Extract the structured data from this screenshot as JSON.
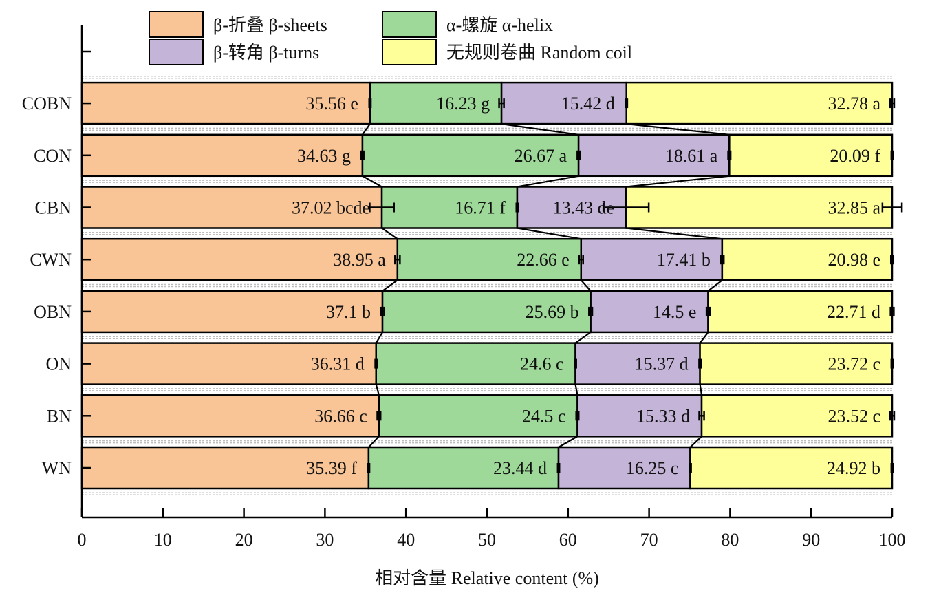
{
  "chart_data": {
    "type": "bar",
    "orientation": "horizontal",
    "stacked": true,
    "percent_stacked": true,
    "xlabel": "相对含量 Relative content (%)",
    "xlim": [
      0,
      100
    ],
    "xticks": [
      "0",
      "10",
      "20",
      "30",
      "40",
      "50",
      "60",
      "70",
      "80",
      "90",
      "100"
    ],
    "categories": [
      "WN",
      "BN",
      "ON",
      "OBN",
      "CWN",
      "CBN",
      "CON",
      "COBN"
    ],
    "legend_position": "top",
    "series": [
      {
        "name": "β-折叠 β-sheets",
        "color": "#f9c597",
        "values": [
          35.39,
          36.66,
          36.31,
          37.1,
          38.95,
          37.02,
          34.63,
          35.56
        ],
        "labels": [
          "35.39 f",
          "36.66 c",
          "36.31 d",
          "37.1 b",
          "38.95 a",
          "37.02 bcde",
          "34.63 g",
          "35.56 e"
        ],
        "errors": [
          0.1,
          0.2,
          0.1,
          0.2,
          0.3,
          1.5,
          0.15,
          0.1
        ]
      },
      {
        "name": "α-螺旋 α-helix",
        "color": "#9ed99a",
        "values": [
          23.44,
          24.5,
          24.6,
          25.69,
          22.66,
          16.71,
          26.67,
          16.23
        ],
        "labels": [
          "23.44 d",
          "24.5 c",
          "24.6 c",
          "25.69 b",
          "22.66 e",
          "16.71 f",
          "26.67 a",
          "16.23 g"
        ],
        "errors": [
          0.1,
          0.15,
          0.1,
          0.2,
          0.25,
          0.1,
          0.15,
          0.3
        ]
      },
      {
        "name": "β-转角 β-turns",
        "color": "#c4b5d8",
        "values": [
          16.25,
          15.33,
          15.37,
          14.5,
          17.41,
          13.43,
          18.61,
          15.42
        ],
        "labels": [
          "16.25 c",
          "15.33 d",
          "15.37 d",
          "14.5 e",
          "17.41 b",
          "13.43 de",
          "18.61 a",
          "15.42 d"
        ],
        "errors": [
          0.1,
          0.3,
          0.1,
          0.2,
          0.2,
          2.8,
          0.15,
          0.1
        ]
      },
      {
        "name": "无规则卷曲 Random coil",
        "color": "#ffff9a",
        "values": [
          24.92,
          23.52,
          23.72,
          22.71,
          20.98,
          32.85,
          20.09,
          32.78
        ],
        "labels": [
          "24.92 b",
          "23.52 c",
          "23.72 c",
          "22.71 d",
          "20.98 e",
          "32.85 a",
          "20.09 f",
          "32.78 a"
        ],
        "errors": [
          0.1,
          0.25,
          0.1,
          0.2,
          0.15,
          1.2,
          0.1,
          0.25
        ]
      }
    ]
  }
}
